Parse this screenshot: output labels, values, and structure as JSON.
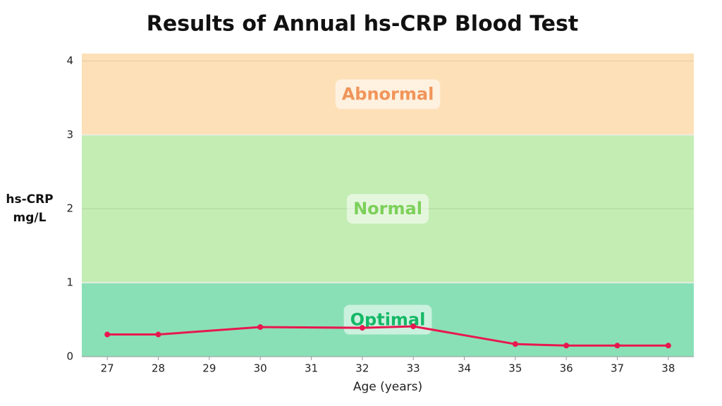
{
  "chart_data": {
    "type": "line",
    "title": "Results of Annual hs-CRP Blood Test",
    "xlabel": "Age (years)",
    "ylabel": "hs-CRP mg/L",
    "x": [
      27,
      28,
      30,
      32,
      33,
      35,
      36,
      37,
      38
    ],
    "series": [
      {
        "name": "hs-CRP",
        "color": "#e8174f",
        "values": [
          0.3,
          0.3,
          0.4,
          0.39,
          0.41,
          0.17,
          0.15,
          0.15,
          0.15
        ]
      }
    ],
    "xlim": [
      26.5,
      38.5
    ],
    "xticks": [
      27,
      28,
      29,
      30,
      31,
      32,
      33,
      34,
      35,
      36,
      37,
      38
    ],
    "ylim": [
      0,
      4.1
    ],
    "yticks": [
      0,
      1,
      2,
      3,
      4
    ],
    "grid": true,
    "bands": [
      {
        "label": "Optimal",
        "from": 0,
        "to": 1,
        "color": "#8ae0b6",
        "label_color": "#14b866"
      },
      {
        "label": "Normal",
        "from": 1,
        "to": 3,
        "color": "#c4edb4",
        "label_color": "#7dd05a"
      },
      {
        "label": "Abnormal",
        "from": 3,
        "to": 4.1,
        "color": "#fde0b8",
        "label_color": "#f0955a"
      }
    ]
  }
}
